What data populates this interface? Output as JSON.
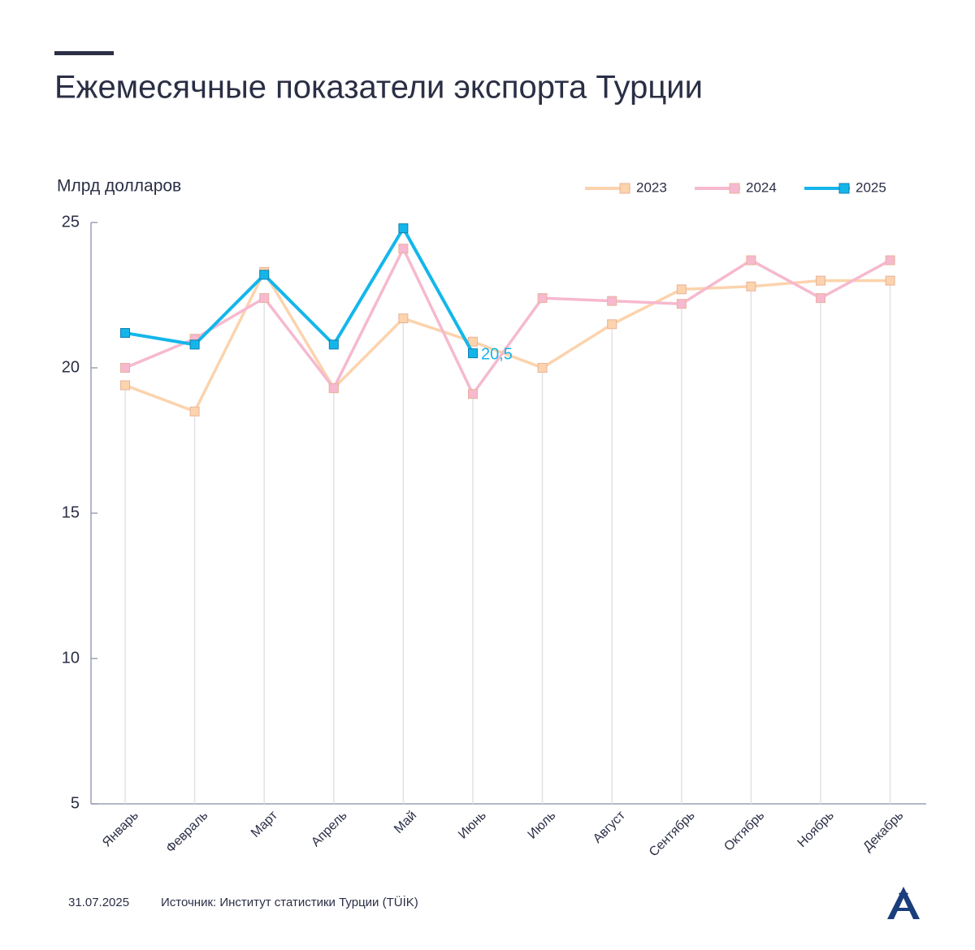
{
  "header": {
    "title": "Ежемесячные показатели экспорта Турции"
  },
  "chart_data": {
    "type": "line",
    "y_label": "Млрд долларов",
    "categories": [
      "Январь",
      "Февраль",
      "Март",
      "Апрель",
      "Май",
      "Июнь",
      "Июль",
      "Август",
      "Сентябрь",
      "Октябрь",
      "Ноябрь",
      "Декабрь"
    ],
    "series": [
      {
        "name": "2023",
        "color": "#fbd3ad",
        "values": [
          19.4,
          18.5,
          23.3,
          19.3,
          21.7,
          20.9,
          20.0,
          21.5,
          22.7,
          22.8,
          23.0,
          23.0
        ]
      },
      {
        "name": "2024",
        "color": "#f6b9cf",
        "values": [
          20.0,
          21.0,
          22.4,
          19.3,
          24.1,
          19.1,
          22.4,
          22.3,
          22.2,
          23.7,
          22.4,
          23.7
        ]
      },
      {
        "name": "2025",
        "color": "#14b6ea",
        "values": [
          21.2,
          20.8,
          23.2,
          20.8,
          24.8,
          20.5,
          null,
          null,
          null,
          null,
          null,
          null
        ],
        "value_labels": [
          null,
          null,
          null,
          null,
          null,
          "20,5",
          null,
          null,
          null,
          null,
          null,
          null
        ]
      }
    ],
    "ylim": [
      5,
      25
    ],
    "yticks": [
      5,
      10,
      15,
      20,
      25
    ],
    "legend": "top-right"
  },
  "footer": {
    "date": "31.07.2025",
    "source": "Источник: Институт статистики Турции (TÜİK)"
  }
}
